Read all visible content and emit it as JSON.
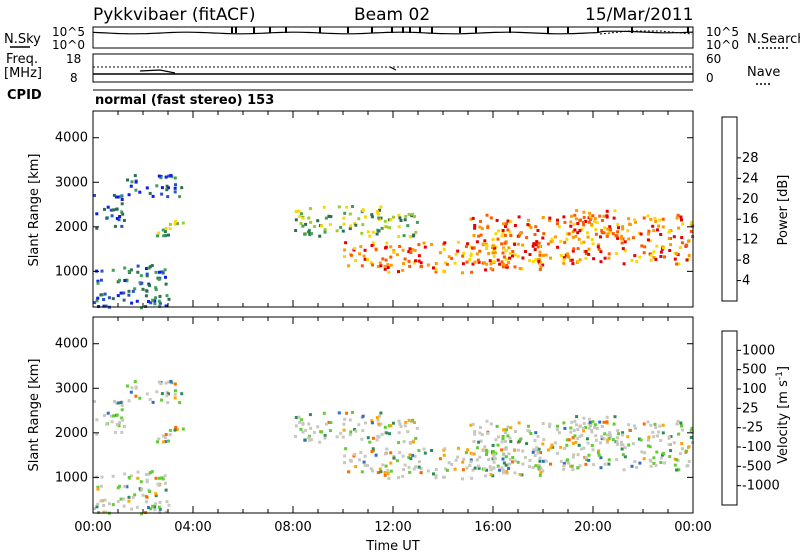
{
  "header": {
    "station": "Pykkvibaer (fitACF)",
    "beam": "Beam 02",
    "date": "15/Mar/2011"
  },
  "status_panels": {
    "nsky_label": "N.Sky",
    "nsearch_label": "N.Search",
    "sky_ticks": [
      "10^5",
      "10^0"
    ],
    "search_ticks": [
      "10^5",
      "10^0"
    ],
    "freq_label": "Freq.",
    "freq_unit": "[MHz]",
    "freq_ticks": [
      "18",
      "8"
    ],
    "nave_label": "Nave",
    "nave_ticks": [
      "60",
      "0"
    ],
    "cpid_label": "CPID",
    "cpid_text": "normal (fast stereo) 153"
  },
  "chart_data": [
    {
      "type": "heatmap",
      "name": "power-panel",
      "ylabel": "Slant Range [km]",
      "ylim": [
        200,
        4600
      ],
      "yticks": [
        1000,
        2000,
        3000,
        4000
      ],
      "xlim": [
        0,
        24
      ],
      "colorbar": {
        "label": "Power [dB]",
        "ticks": [
          "4",
          "8",
          "12",
          "16",
          "20",
          "24",
          "28"
        ],
        "colors": [
          "#0a1ee6",
          "#2850c8",
          "#2e6f52",
          "#3d9f5a",
          "#9acd32",
          "#ffd700",
          "#ff9a00",
          "#ff5a00",
          "#e60000"
        ]
      },
      "echo_bands": [
        {
          "x": [
            0,
            1.2
          ],
          "y": [
            2000,
            2800
          ],
          "level": "low"
        },
        {
          "x": [
            1.2,
            3.5
          ],
          "y": [
            2700,
            3200
          ],
          "level": "low"
        },
        {
          "x": [
            2.3,
            3.6
          ],
          "y": [
            1800,
            2200
          ],
          "level": "mid"
        },
        {
          "x": [
            0,
            3
          ],
          "y": [
            200,
            1200
          ],
          "level": "low"
        },
        {
          "x": [
            8,
            13
          ],
          "y": [
            1800,
            2500
          ],
          "level": "mid"
        },
        {
          "x": [
            10,
            18
          ],
          "y": [
            1000,
            1700
          ],
          "level": "high"
        },
        {
          "x": [
            15,
            24
          ],
          "y": [
            1200,
            2300
          ],
          "level": "high"
        },
        {
          "x": [
            19,
            21
          ],
          "y": [
            1800,
            2400
          ],
          "level": "high"
        }
      ]
    },
    {
      "type": "heatmap",
      "name": "velocity-panel",
      "ylabel": "Slant Range [km]",
      "ylim": [
        200,
        4600
      ],
      "yticks": [
        1000,
        2000,
        3000,
        4000
      ],
      "xlim": [
        0,
        24
      ],
      "xticks": [
        "00:00",
        "04:00",
        "08:00",
        "12:00",
        "16:00",
        "20:00",
        "00:00"
      ],
      "xlabel": "Time UT",
      "colorbar": {
        "label": "Velocity [m s^-1]",
        "ticks": [
          "1000",
          "500",
          "100",
          "25",
          "-25",
          "-100",
          "-500",
          "-1000"
        ],
        "colors": [
          "#1b3faa",
          "#2e6fc8",
          "#2e8b57",
          "#62cd32",
          "#c8c8c0",
          "#c8c8c0",
          "#ffa500",
          "#ff6a00",
          "#e60000"
        ]
      }
    }
  ]
}
